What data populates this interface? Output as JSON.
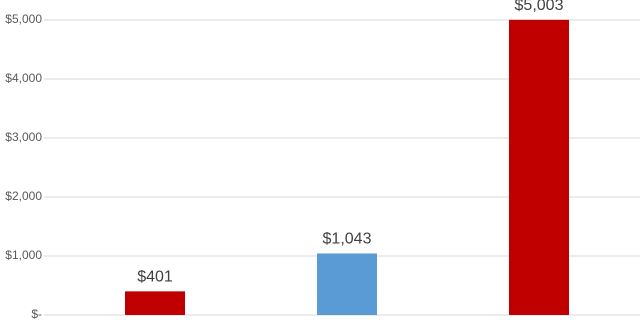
{
  "chart_data": {
    "type": "bar",
    "categories": [
      null,
      null,
      null
    ],
    "values": [
      401,
      1043,
      5003
    ],
    "value_labels": [
      "$401",
      "$1,043",
      "$5,003"
    ],
    "colors": [
      "#c00000",
      "#5b9bd5",
      "#c00000"
    ],
    "ylim": [
      0,
      5000
    ],
    "yticks": [
      {
        "value": 0,
        "label": "$-"
      },
      {
        "value": 1000,
        "label": "$1,000"
      },
      {
        "value": 2000,
        "label": "$2,000"
      },
      {
        "value": 3000,
        "label": "$3,000"
      },
      {
        "value": 4000,
        "label": "$4,000"
      },
      {
        "value": 5000,
        "label": "$5,000"
      }
    ],
    "grid": true
  }
}
